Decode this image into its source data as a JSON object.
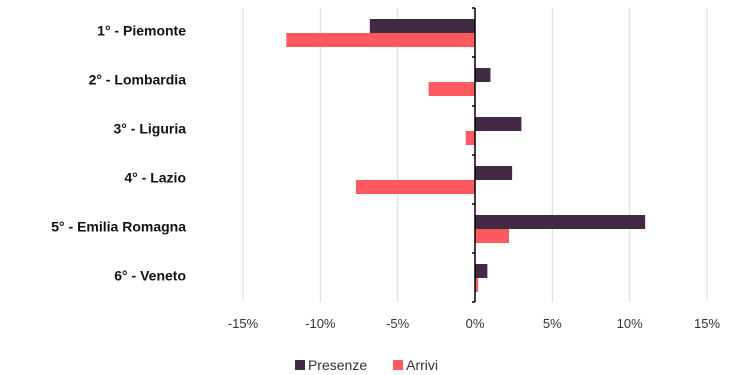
{
  "chart_data": {
    "type": "bar",
    "orientation": "horizontal",
    "categories": [
      "1° - Piemonte",
      "2° - Lombardia",
      "3° - Liguria",
      "4° - Lazio",
      "5° - Emilia Romagna",
      "6° - Veneto"
    ],
    "series": [
      {
        "name": "Presenze",
        "color": "#422a44",
        "values": [
          -6.8,
          1.0,
          3.0,
          2.4,
          11.0,
          0.8
        ]
      },
      {
        "name": "Arrivi",
        "color": "#ff5a5f",
        "values": [
          -12.2,
          -3.0,
          -0.6,
          -7.7,
          2.2,
          0.2
        ]
      }
    ],
    "xlim": [
      -15,
      15
    ],
    "xticks": [
      -15,
      -10,
      -5,
      0,
      5,
      10,
      15
    ],
    "tick_labels": [
      "-15%",
      "-10%",
      "-5%",
      "0%",
      "5%",
      "10%",
      "15%"
    ],
    "grid": true,
    "legend_position": "bottom"
  }
}
